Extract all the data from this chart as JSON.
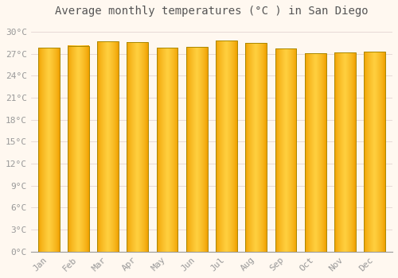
{
  "title": "Average monthly temperatures (°C ) in San Diego",
  "months": [
    "Jan",
    "Feb",
    "Mar",
    "Apr",
    "May",
    "Jun",
    "Jul",
    "Aug",
    "Sep",
    "Oct",
    "Nov",
    "Dec"
  ],
  "values": [
    27.8,
    28.1,
    28.7,
    28.6,
    27.8,
    27.9,
    28.8,
    28.5,
    27.7,
    27.1,
    27.2,
    27.3
  ],
  "bar_color_center": "#FFD040",
  "bar_color_edge": "#F0A000",
  "background_color": "#FFF8F0",
  "plot_bg_color": "#FFF8F0",
  "grid_color": "#DDCCCC",
  "ytick_labels": [
    "0°C",
    "3°C",
    "6°C",
    "9°C",
    "12°C",
    "15°C",
    "18°C",
    "21°C",
    "24°C",
    "27°C",
    "30°C"
  ],
  "ytick_values": [
    0,
    3,
    6,
    9,
    12,
    15,
    18,
    21,
    24,
    27,
    30
  ],
  "ylim": [
    0,
    31.5
  ],
  "title_fontsize": 10,
  "tick_fontsize": 8,
  "tick_font_color": "#999999",
  "title_font_color": "#555555",
  "font_family": "monospace",
  "bar_width": 0.72,
  "outline_color": "#AA8800"
}
